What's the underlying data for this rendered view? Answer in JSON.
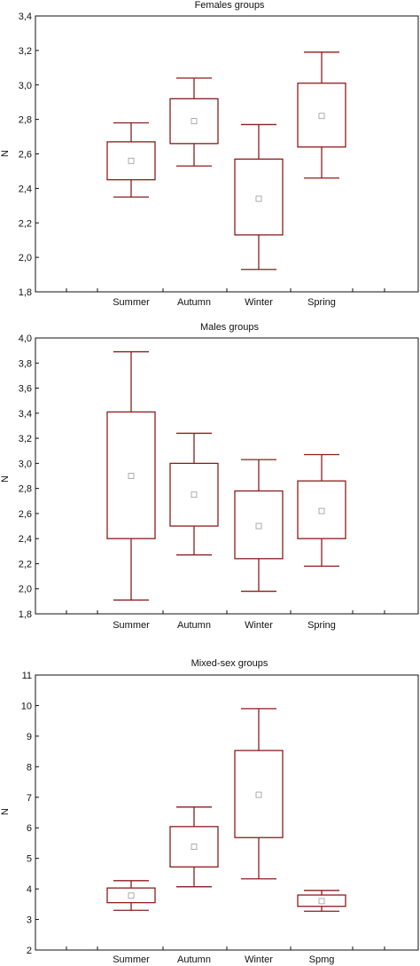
{
  "chart_data": [
    {
      "type": "box",
      "title": "Females groups",
      "xlabel": "",
      "ylabel": "N",
      "ylim": [
        1.8,
        3.4
      ],
      "yticks": [
        1.8,
        2.0,
        2.2,
        2.4,
        2.6,
        2.8,
        3.0,
        3.2,
        3.4
      ],
      "ytick_labels": [
        "1,8",
        "2,0",
        "2,2",
        "2,4",
        "2,6",
        "2,8",
        "3,0",
        "3,2",
        "3,4"
      ],
      "categories": [
        "Summer",
        "Autumn",
        "Winter",
        "Spring"
      ],
      "boxes": [
        {
          "low": 2.35,
          "q1": 2.45,
          "mid": 2.56,
          "q3": 2.67,
          "high": 2.78
        },
        {
          "low": 2.53,
          "q1": 2.66,
          "mid": 2.79,
          "q3": 2.92,
          "high": 3.04
        },
        {
          "low": 1.93,
          "q1": 2.13,
          "mid": 2.34,
          "q3": 2.57,
          "high": 2.77
        },
        {
          "low": 2.46,
          "q1": 2.64,
          "mid": 2.82,
          "q3": 3.01,
          "high": 3.19
        }
      ]
    },
    {
      "type": "box",
      "title": "Males groups",
      "xlabel": "",
      "ylabel": "N",
      "ylim": [
        1.8,
        4.0
      ],
      "yticks": [
        1.8,
        2.0,
        2.2,
        2.4,
        2.6,
        2.8,
        3.0,
        3.2,
        3.4,
        3.6,
        3.8,
        4.0
      ],
      "ytick_labels": [
        "1,8",
        "2,0",
        "2,2",
        "2,4",
        "2,6",
        "2,8",
        "3,0",
        "3,2",
        "3,4",
        "3,6",
        "3,8",
        "4,0"
      ],
      "categories": [
        "Summer",
        "Autumn",
        "Winter",
        "Spring"
      ],
      "boxes": [
        {
          "low": 1.91,
          "q1": 2.4,
          "mid": 2.9,
          "q3": 3.41,
          "high": 3.89
        },
        {
          "low": 2.27,
          "q1": 2.5,
          "mid": 2.75,
          "q3": 3.0,
          "high": 3.24
        },
        {
          "low": 1.98,
          "q1": 2.24,
          "mid": 2.5,
          "q3": 2.78,
          "high": 3.03
        },
        {
          "low": 2.18,
          "q1": 2.4,
          "mid": 2.62,
          "q3": 2.86,
          "high": 3.07
        }
      ]
    },
    {
      "type": "box",
      "title": "Mixed-sex groups",
      "xlabel": "",
      "ylabel": "N",
      "ylim": [
        2,
        11
      ],
      "yticks": [
        2,
        3,
        4,
        5,
        6,
        7,
        8,
        9,
        10,
        11
      ],
      "ytick_labels": [
        "2",
        "3",
        "4",
        "5",
        "6",
        "7",
        "8",
        "9",
        "10",
        "11"
      ],
      "categories": [
        "Summer",
        "Autumn",
        "Winter",
        "Spmg"
      ],
      "boxes": [
        {
          "low": 3.3,
          "q1": 3.55,
          "mid": 3.78,
          "q3": 4.03,
          "high": 4.27
        },
        {
          "low": 4.07,
          "q1": 4.72,
          "mid": 5.38,
          "q3": 6.04,
          "high": 6.68
        },
        {
          "low": 4.33,
          "q1": 5.68,
          "mid": 7.08,
          "q3": 8.53,
          "high": 9.9
        },
        {
          "low": 3.27,
          "q1": 3.43,
          "mid": 3.6,
          "q3": 3.8,
          "high": 3.95
        }
      ]
    }
  ]
}
